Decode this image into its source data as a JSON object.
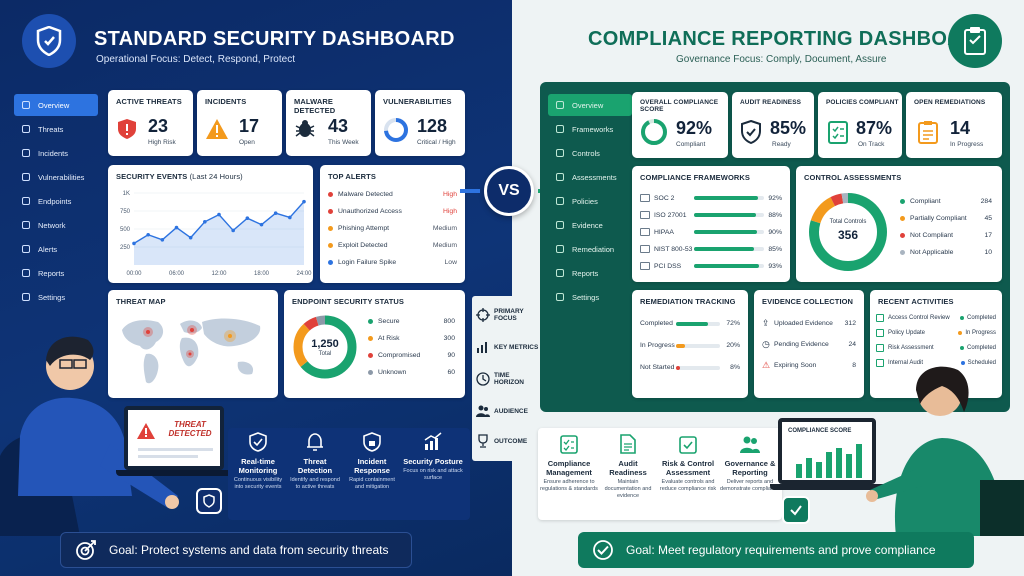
{
  "left": {
    "title": "STANDARD SECURITY DASHBOARD",
    "subtitle": "Operational Focus: Detect, Respond, Protect",
    "nav": [
      "Overview",
      "Threats",
      "Incidents",
      "Vulnerabilities",
      "Endpoints",
      "Network",
      "Alerts",
      "Reports",
      "Settings"
    ],
    "kpis": [
      {
        "title": "ACTIVE THREATS",
        "value": "23",
        "sub": "High Risk"
      },
      {
        "title": "INCIDENTS",
        "value": "17",
        "sub": "Open"
      },
      {
        "title": "MALWARE DETECTED",
        "value": "43",
        "sub": "This Week"
      },
      {
        "title": "VULNERABILITIES",
        "value": "128",
        "sub": "Critical / High"
      }
    ],
    "events": {
      "title": "SECURITY EVENTS",
      "period": "(Last 24 Hours)",
      "yticks": [
        "1K",
        "750",
        "500",
        "250"
      ],
      "xticks": [
        "00:00",
        "06:00",
        "12:00",
        "18:00",
        "24:00"
      ]
    },
    "alerts": {
      "title": "TOP ALERTS",
      "items": [
        {
          "label": "Malware Detected",
          "level": "High"
        },
        {
          "label": "Unauthorized Access",
          "level": "High"
        },
        {
          "label": "Phishing Attempt",
          "level": "Medium"
        },
        {
          "label": "Exploit Detected",
          "level": "Medium"
        },
        {
          "label": "Login Failure Spike",
          "level": "Low"
        }
      ]
    },
    "threatmap": {
      "title": "THREAT MAP"
    },
    "endpoint": {
      "title": "ENDPOINT SECURITY STATUS",
      "total": "1,250",
      "total_label": "Total",
      "items": [
        {
          "label": "Secure",
          "value": "800"
        },
        {
          "label": "At Risk",
          "value": "300"
        },
        {
          "label": "Compromised",
          "value": "90"
        },
        {
          "label": "Unknown",
          "value": "60"
        }
      ]
    },
    "alert_screen": "THREAT DETECTED",
    "features": [
      {
        "t": "Real-time Monitoring",
        "d": "Continuous visibility into security events"
      },
      {
        "t": "Threat Detection",
        "d": "Identify and respond to active threats"
      },
      {
        "t": "Incident Response",
        "d": "Rapid containment and mitigation"
      },
      {
        "t": "Security Posture",
        "d": "Focus on risk and attack surface"
      }
    ],
    "goal": "Goal: Protect systems and data from security threats"
  },
  "middle": {
    "vs": "VS",
    "items": [
      "PRIMARY FOCUS",
      "KEY METRICS",
      "TIME HORIZON",
      "AUDIENCE",
      "OUTCOME"
    ]
  },
  "right": {
    "title": "COMPLIANCE REPORTING DASHBOARD",
    "subtitle": "Governance Focus: Comply, Document, Assure",
    "nav": [
      "Overview",
      "Frameworks",
      "Controls",
      "Assessments",
      "Policies",
      "Evidence",
      "Remediation",
      "Reports",
      "Settings"
    ],
    "kpis": [
      {
        "title": "OVERALL COMPLIANCE SCORE",
        "value": "92%",
        "sub": "Compliant"
      },
      {
        "title": "AUDIT READINESS",
        "value": "85%",
        "sub": "Ready"
      },
      {
        "title": "POLICIES COMPLIANT",
        "value": "87%",
        "sub": "On Track"
      },
      {
        "title": "OPEN REMEDIATIONS",
        "value": "14",
        "sub": "In Progress"
      }
    ],
    "frameworks": {
      "title": "COMPLIANCE FRAMEWORKS",
      "items": [
        {
          "label": "SOC 2",
          "value": "92%"
        },
        {
          "label": "ISO 27001",
          "value": "88%"
        },
        {
          "label": "HIPAA",
          "value": "90%"
        },
        {
          "label": "NIST 800-53",
          "value": "85%"
        },
        {
          "label": "PCI DSS",
          "value": "93%"
        }
      ]
    },
    "controls": {
      "title": "CONTROL ASSESSMENTS",
      "total_label": "Total Controls",
      "total": "356",
      "items": [
        {
          "label": "Compliant",
          "value": "284"
        },
        {
          "label": "Partially Compliant",
          "value": "45"
        },
        {
          "label": "Not Compliant",
          "value": "17"
        },
        {
          "label": "Not Applicable",
          "value": "10"
        }
      ]
    },
    "remediation": {
      "title": "REMEDIATION TRACKING",
      "items": [
        {
          "label": "Completed",
          "value": "72%"
        },
        {
          "label": "In Progress",
          "value": "20%"
        },
        {
          "label": "Not Started",
          "value": "8%"
        }
      ]
    },
    "evidence": {
      "title": "EVIDENCE COLLECTION",
      "items": [
        {
          "label": "Uploaded Evidence",
          "value": "312"
        },
        {
          "label": "Pending Evidence",
          "value": "24"
        },
        {
          "label": "Expiring Soon",
          "value": "8"
        }
      ]
    },
    "activities": {
      "title": "RECENT ACTIVITIES",
      "items": [
        {
          "label": "Access Control Review",
          "status": "Completed"
        },
        {
          "label": "Policy Update",
          "status": "In Progress"
        },
        {
          "label": "Risk Assessment",
          "status": "Completed"
        },
        {
          "label": "Internal Audit",
          "status": "Scheduled"
        }
      ]
    },
    "laptop_title": "COMPLIANCE SCORE",
    "features": [
      {
        "t": "Compliance Management",
        "d": "Ensure adherence to regulations & standards"
      },
      {
        "t": "Audit Readiness",
        "d": "Maintain documentation and evidence"
      },
      {
        "t": "Risk & Control Assessment",
        "d": "Evaluate controls and reduce compliance risk"
      },
      {
        "t": "Governance & Reporting",
        "d": "Deliver reports and demonstrate compliance"
      }
    ],
    "goal": "Goal: Meet regulatory requirements and prove compliance"
  },
  "colors": {
    "navy": "#0c2a66",
    "blue": "#2d73e0",
    "green": "#1aa36f",
    "red": "#e0413a",
    "orange": "#f39a1d"
  },
  "chart_data": [
    {
      "type": "line",
      "title": "SECURITY EVENTS",
      "x": [
        "00:00",
        "02:00",
        "04:00",
        "06:00",
        "08:00",
        "10:00",
        "12:00",
        "14:00",
        "16:00",
        "18:00",
        "20:00",
        "22:00",
        "24:00"
      ],
      "series": [
        {
          "values": [
            300,
            420,
            350,
            520,
            380,
            600,
            700,
            480,
            650,
            560,
            720,
            660,
            880
          ]
        }
      ],
      "ylim": [
        0,
        1000
      ],
      "grid": true
    },
    {
      "type": "pie",
      "title": "ENDPOINT SECURITY STATUS",
      "categories": [
        "Secure",
        "At Risk",
        "Compromised",
        "Unknown"
      ],
      "values": [
        800,
        300,
        90,
        60
      ]
    },
    {
      "type": "pie",
      "title": "CONTROL ASSESSMENTS",
      "categories": [
        "Compliant",
        "Partially Compliant",
        "Not Compliant",
        "Not Applicable"
      ],
      "values": [
        284,
        45,
        17,
        10
      ]
    }
  ]
}
